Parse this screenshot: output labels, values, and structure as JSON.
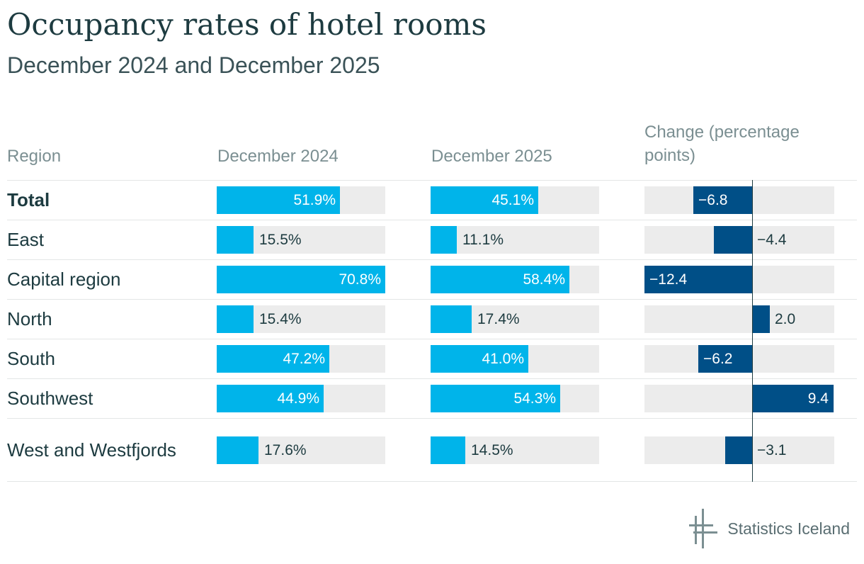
{
  "title": "Occupancy rates of hotel rooms",
  "subtitle": "December 2024 and December 2025",
  "columns": {
    "region": "Region",
    "dec2024": "December 2024",
    "dec2025": "December 2025",
    "change": "Change (percentage points)"
  },
  "colors": {
    "occupancy": "#00b4ea",
    "change": "#004f87",
    "track": "#ececec",
    "label_dark": "#1d3b40",
    "label_light": "#ffffff"
  },
  "logo": {
    "text": "Statistics Iceland",
    "icon": "statistics-iceland-logo-icon"
  },
  "chart_data": {
    "type": "bar",
    "title": "Occupancy rates of hotel rooms",
    "subtitle": "December 2024 and December 2025",
    "xlabel": "",
    "ylabel": "",
    "occupancy_range": [
      0,
      70.8
    ],
    "change_range": [
      -12.4,
      9.4
    ],
    "categories": [
      "Total",
      "East",
      "Capital region",
      "North",
      "South",
      "Southwest",
      "West and Westfjords"
    ],
    "series": [
      {
        "name": "December 2024",
        "values": [
          51.9,
          15.5,
          70.8,
          15.4,
          47.2,
          44.9,
          17.6
        ],
        "labels": [
          "51.9%",
          "15.5%",
          "70.8%",
          "15.4%",
          "47.2%",
          "44.9%",
          "17.6%"
        ]
      },
      {
        "name": "December 2025",
        "values": [
          45.1,
          11.1,
          58.4,
          17.4,
          41.0,
          54.3,
          14.5
        ],
        "labels": [
          "45.1%",
          "11.1%",
          "58.4%",
          "17.4%",
          "41.0%",
          "54.3%",
          "14.5%"
        ]
      },
      {
        "name": "Change (percentage points)",
        "values": [
          -6.8,
          -4.4,
          -12.4,
          2.0,
          -6.2,
          9.4,
          -3.1
        ],
        "labels": [
          "−6.8",
          "−4.4",
          "−12.4",
          "2.0",
          "−6.2",
          "9.4",
          "−3.1"
        ]
      }
    ]
  }
}
